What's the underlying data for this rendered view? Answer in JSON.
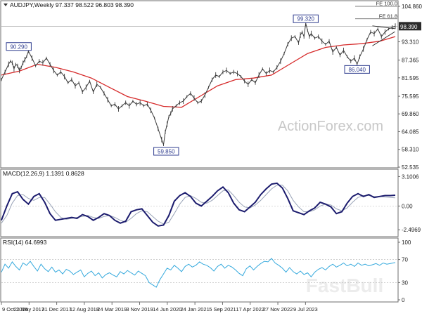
{
  "chart_data": {
    "type": "candlestick",
    "title": "AUDJPY,Weekly  97.337 98.522 96.803 98.390",
    "watermarks": [
      "ActionForex.com",
      "FastBull"
    ],
    "main": {
      "ylim": [
        52.535,
        106.0
      ],
      "yticks": [
        "104.860",
        "98.390",
        "93.310",
        "87.365",
        "81.595",
        "75.595",
        "69.860",
        "64.085",
        "58.310",
        "52.535"
      ],
      "ytick_values": [
        104.86,
        98.39,
        93.31,
        87.365,
        81.595,
        75.595,
        69.86,
        64.085,
        58.31,
        52.535
      ],
      "last_price": "98.390",
      "fib_labels": [
        {
          "text": "FE 100.0",
          "value": 104.86
        },
        {
          "text": "FE 61.8",
          "value": 100.8
        }
      ],
      "annotations": [
        {
          "text": "90.290",
          "x": 19.3,
          "value": 90.29
        },
        {
          "text": "59.850",
          "x": 183.0,
          "value": 59.85
        },
        {
          "text": "99.320",
          "x": 338.0,
          "value": 99.32
        },
        {
          "text": "86.040",
          "x": 395.0,
          "value": 86.04
        }
      ],
      "price_series": {
        "x": [
          0,
          4,
          8,
          10,
          12,
          14,
          16,
          18,
          20,
          22,
          24,
          26,
          28,
          30,
          34,
          38,
          42,
          46,
          50,
          54,
          58,
          62,
          66,
          70,
          74,
          78,
          82,
          86,
          90,
          94,
          98,
          102,
          106,
          110,
          114,
          118,
          122,
          126,
          130,
          134,
          138,
          142,
          146,
          150,
          154,
          158,
          162,
          166,
          170,
          174,
          178,
          180,
          182,
          184,
          186,
          188,
          190,
          194,
          198,
          202,
          206,
          210,
          214,
          218,
          222,
          226,
          230,
          234,
          238,
          242,
          246,
          250,
          254,
          258,
          262,
          266,
          270,
          274,
          278,
          282,
          286,
          290,
          294,
          298,
          302,
          306,
          310,
          314,
          318,
          322,
          326,
          330,
          332,
          334,
          336,
          338,
          340,
          342,
          344,
          348,
          352,
          356,
          360,
          364,
          368,
          372,
          376,
          380,
          384,
          388,
          392,
          395,
          398,
          402,
          406,
          410,
          414,
          418,
          422,
          426,
          430,
          434,
          437.4
        ],
        "close": [
          81.0,
          83.5,
          86.0,
          87.0,
          86.5,
          84.5,
          86.0,
          85.5,
          84.0,
          85.0,
          86.5,
          87.5,
          88.5,
          90.29,
          88.0,
          85.5,
          87.0,
          86.5,
          88.0,
          86.0,
          84.0,
          82.5,
          83.5,
          82.0,
          80.0,
          81.0,
          79.0,
          80.0,
          77.0,
          78.5,
          80.5,
          77.0,
          79.5,
          78.5,
          76.5,
          74.5,
          72.5,
          73.0,
          71.5,
          72.5,
          73.5,
          72.5,
          74.0,
          73.0,
          73.5,
          72.5,
          73.0,
          71.0,
          68.5,
          65.0,
          61.5,
          59.85,
          64.0,
          66.5,
          69.0,
          70.0,
          71.5,
          72.5,
          73.5,
          74.0,
          75.5,
          76.5,
          75.0,
          73.5,
          74.0,
          76.0,
          78.5,
          81.0,
          82.5,
          82.0,
          83.5,
          84.0,
          83.0,
          83.5,
          83.0,
          82.0,
          80.5,
          79.5,
          81.0,
          80.0,
          82.5,
          84.5,
          83.0,
          84.0,
          83.5,
          85.0,
          87.0,
          89.5,
          92.5,
          94.5,
          95.0,
          93.0,
          95.5,
          96.5,
          95.0,
          99.32,
          97.0,
          95.0,
          96.0,
          94.5,
          95.0,
          93.5,
          92.5,
          93.5,
          90.0,
          91.5,
          89.0,
          90.5,
          88.5,
          87.0,
          88.0,
          86.04,
          88.5,
          91.0,
          94.0,
          96.5,
          96.0,
          97.5,
          95.0,
          96.5,
          97.5,
          98.0,
          98.39
        ]
      },
      "ma_series": {
        "x": [
          0,
          20,
          40,
          60,
          80,
          100,
          120,
          140,
          160,
          180,
          200,
          220,
          240,
          260,
          280,
          300,
          320,
          340,
          360,
          380,
          400,
          420,
          437.4
        ],
        "values": [
          82.5,
          83.8,
          86.0,
          85.0,
          83.5,
          81.5,
          78.5,
          75.5,
          74.0,
          72.3,
          72.0,
          75.5,
          79.0,
          81.0,
          81.5,
          82.5,
          86.0,
          89.5,
          91.5,
          92.3,
          92.7,
          93.5,
          95.0
        ]
      }
    },
    "macd": {
      "label": "MACD(12,26,9) 1.1391 0.8628",
      "ylim": [
        -3.0,
        3.5
      ],
      "yticks": [
        "3.1006",
        "0.00",
        "-2.4969"
      ],
      "ytick_values": [
        3.1006,
        0.0,
        -2.4969
      ],
      "x": [
        0,
        6,
        12,
        18,
        24,
        30,
        36,
        42,
        48,
        54,
        60,
        66,
        72,
        78,
        84,
        90,
        96,
        102,
        108,
        114,
        120,
        126,
        132,
        138,
        144,
        150,
        156,
        162,
        168,
        174,
        180,
        186,
        192,
        198,
        204,
        210,
        216,
        222,
        228,
        234,
        240,
        246,
        252,
        258,
        264,
        270,
        276,
        282,
        288,
        294,
        300,
        306,
        312,
        318,
        324,
        330,
        336,
        342,
        348,
        354,
        360,
        366,
        372,
        378,
        384,
        390,
        396,
        402,
        408,
        414,
        420,
        426,
        432,
        437.4
      ],
      "macd": [
        -1.5,
        0.0,
        1.3,
        1.5,
        0.7,
        0.2,
        1.0,
        1.3,
        0.4,
        -0.8,
        -1.5,
        -1.4,
        -1.3,
        -1.2,
        -1.3,
        -0.9,
        -1.1,
        -1.5,
        -1.2,
        -0.8,
        -1.0,
        -1.5,
        -1.8,
        -1.6,
        -0.6,
        -0.4,
        -0.3,
        -1.0,
        -1.7,
        -2.1,
        -2.0,
        -1.0,
        0.5,
        1.1,
        1.4,
        1.0,
        0.3,
        0.0,
        0.5,
        1.0,
        1.6,
        2.0,
        1.4,
        0.3,
        -0.4,
        -0.6,
        -0.1,
        0.4,
        1.2,
        1.8,
        2.3,
        2.4,
        1.9,
        0.8,
        -0.5,
        -0.7,
        -0.9,
        -0.5,
        -0.2,
        0.4,
        0.2,
        -0.1,
        -0.8,
        -0.6,
        0.3,
        1.0,
        1.3,
        1.0,
        1.2,
        0.9,
        1.0,
        1.1,
        1.1,
        1.14
      ],
      "signal": [
        -1.8,
        -1.0,
        0.3,
        1.1,
        1.2,
        0.8,
        0.6,
        0.9,
        0.9,
        0.2,
        -0.6,
        -1.2,
        -1.4,
        -1.3,
        -1.2,
        -1.1,
        -1.0,
        -1.2,
        -1.3,
        -1.1,
        -1.0,
        -1.2,
        -1.5,
        -1.7,
        -1.3,
        -0.8,
        -0.5,
        -0.6,
        -1.1,
        -1.6,
        -1.9,
        -1.7,
        -0.8,
        0.2,
        0.9,
        1.1,
        0.8,
        0.4,
        0.3,
        0.6,
        1.1,
        1.6,
        1.7,
        1.1,
        0.4,
        -0.1,
        -0.2,
        0.1,
        0.6,
        1.2,
        1.8,
        2.2,
        2.2,
        1.6,
        0.6,
        -0.1,
        -0.6,
        -0.6,
        -0.4,
        0.0,
        0.2,
        0.1,
        -0.3,
        -0.5,
        -0.2,
        0.4,
        0.9,
        1.1,
        1.1,
        1.0,
        1.0,
        0.95,
        0.9,
        0.86
      ]
    },
    "rsi": {
      "label": "RSI(14) 64.6993",
      "ylim": [
        0,
        100
      ],
      "yticks": [
        "100",
        "70",
        "30",
        "0"
      ],
      "ytick_values": [
        100,
        70,
        30,
        0
      ],
      "x": [
        0,
        4,
        8,
        12,
        16,
        20,
        24,
        28,
        32,
        36,
        40,
        44,
        48,
        52,
        56,
        60,
        64,
        68,
        72,
        76,
        80,
        84,
        88,
        92,
        96,
        100,
        104,
        108,
        112,
        116,
        120,
        124,
        128,
        132,
        136,
        140,
        144,
        148,
        152,
        156,
        160,
        164,
        168,
        172,
        176,
        180,
        184,
        188,
        192,
        196,
        200,
        204,
        208,
        212,
        216,
        220,
        224,
        228,
        232,
        236,
        240,
        244,
        248,
        252,
        256,
        260,
        264,
        268,
        272,
        276,
        280,
        284,
        288,
        292,
        296,
        300,
        304,
        308,
        312,
        316,
        320,
        324,
        328,
        332,
        336,
        340,
        344,
        348,
        352,
        356,
        360,
        364,
        368,
        372,
        376,
        380,
        384,
        388,
        392,
        396,
        400,
        404,
        408,
        412,
        416,
        420,
        424,
        428,
        432,
        437.4
      ],
      "values": [
        48,
        62,
        55,
        66,
        58,
        52,
        64,
        60,
        67,
        58,
        50,
        62,
        54,
        49,
        57,
        48,
        52,
        45,
        53,
        50,
        44,
        48,
        52,
        40,
        46,
        50,
        42,
        47,
        38,
        44,
        47,
        43,
        40,
        49,
        45,
        51,
        47,
        43,
        50,
        46,
        42,
        30,
        26,
        22,
        35,
        45,
        55,
        52,
        60,
        55,
        49,
        58,
        62,
        57,
        60,
        66,
        62,
        60,
        56,
        50,
        58,
        62,
        55,
        60,
        57,
        52,
        46,
        42,
        54,
        59,
        52,
        58,
        63,
        67,
        66,
        72,
        64,
        60,
        55,
        48,
        56,
        49,
        45,
        50,
        44,
        47,
        40,
        48,
        53,
        56,
        52,
        58,
        62,
        57,
        60,
        64,
        59,
        62,
        58,
        64,
        60,
        62,
        59,
        61,
        63,
        60,
        64,
        62,
        63,
        64.7
      ]
    },
    "x_axis": {
      "labels": [
        "9 Oct 2016",
        "21 May 2017",
        "31 Dec 2017",
        "12 Aug 2018",
        "24 Mar 2019",
        "3 Nov 2019",
        "14 Jun 2020",
        "24 Jan 2021",
        "5 Sep 2021",
        "17 Apr 2022",
        "27 Nov 2022",
        "9 Jul 2023"
      ],
      "positions": [
        0,
        30.7,
        61.4,
        92.1,
        122.8,
        153.5,
        184.2,
        214.9,
        245.6,
        276.3,
        307.0,
        337.7
      ],
      "range": [
        0,
        437.4
      ]
    },
    "colors": {
      "price": "#3a3a3a",
      "ma": "#d62a2a",
      "macd": "#1c1c6e",
      "signal": "#9aa4b8",
      "rsi": "#35a9dd",
      "label_box": "#2f3d8f",
      "grid": "#c8c8c8",
      "border": "#6e6e6e",
      "watermark": "#c8c8c8"
    }
  }
}
